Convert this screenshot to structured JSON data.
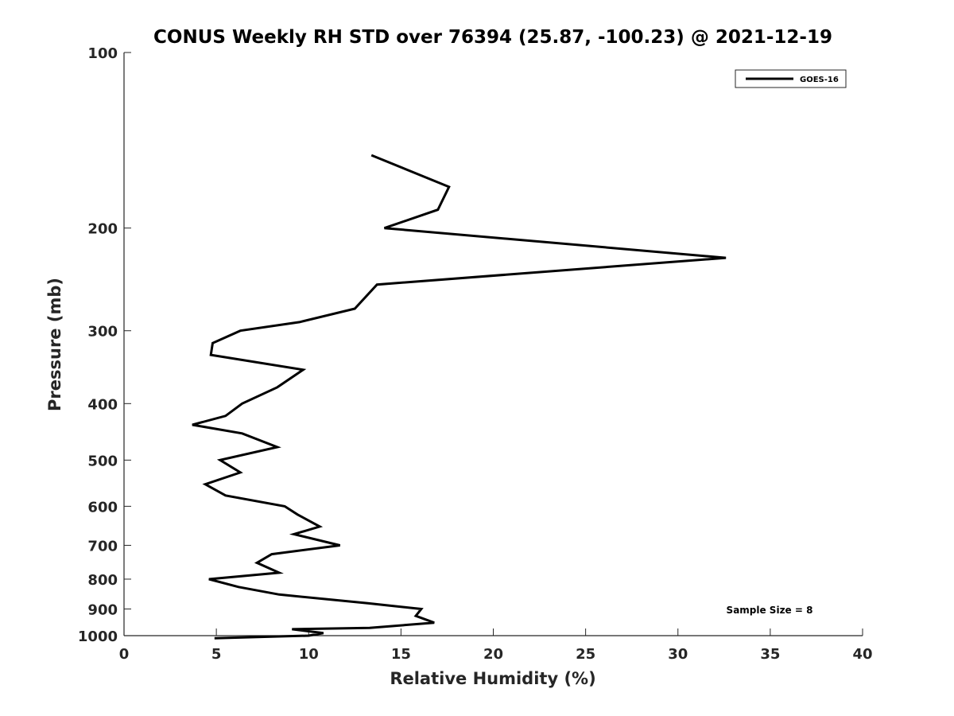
{
  "chart_data": {
    "type": "line",
    "title": "CONUS Weekly RH STD over 76394 (25.87, -100.23) @ 2021-12-19",
    "xlabel": "Relative Humidity (%)",
    "ylabel": "Pressure (mb)",
    "xlim": [
      0,
      40
    ],
    "ylim": [
      100,
      1000
    ],
    "y_scale": "log",
    "y_reversed": true,
    "x_ticks": [
      "0",
      "5",
      "10",
      "15",
      "20",
      "25",
      "30",
      "35",
      "40"
    ],
    "y_ticks": [
      "100",
      "200",
      "300",
      "400",
      "500",
      "600",
      "700",
      "800",
      "900",
      "1000"
    ],
    "grid": false,
    "legend_position": "top-right",
    "series": [
      {
        "name": "GOES-16",
        "color": "#000000",
        "x": [
          13.4,
          17.6,
          17.0,
          14.1,
          32.6,
          13.7,
          12.5,
          9.5,
          6.3,
          4.8,
          4.7,
          9.7,
          8.3,
          6.4,
          5.5,
          3.7,
          6.4,
          8.3,
          5.2,
          6.3,
          4.4,
          5.5,
          8.7,
          9.4,
          10.6,
          9.2,
          11.7,
          8.0,
          7.2,
          8.4,
          4.6,
          6.2,
          8.4,
          13.2,
          16.1,
          15.8,
          16.8,
          13.3,
          9.1,
          10.8,
          10.0,
          4.9
        ],
        "y": [
          150,
          170,
          186,
          200,
          225,
          250,
          275,
          290,
          300,
          315,
          330,
          350,
          375,
          400,
          420,
          435,
          450,
          475,
          500,
          525,
          550,
          575,
          600,
          620,
          650,
          670,
          700,
          725,
          750,
          780,
          800,
          825,
          850,
          880,
          900,
          925,
          950,
          970,
          975,
          990,
          1000,
          1010
        ]
      }
    ],
    "annotations": [
      "Sample Size = 8"
    ]
  }
}
